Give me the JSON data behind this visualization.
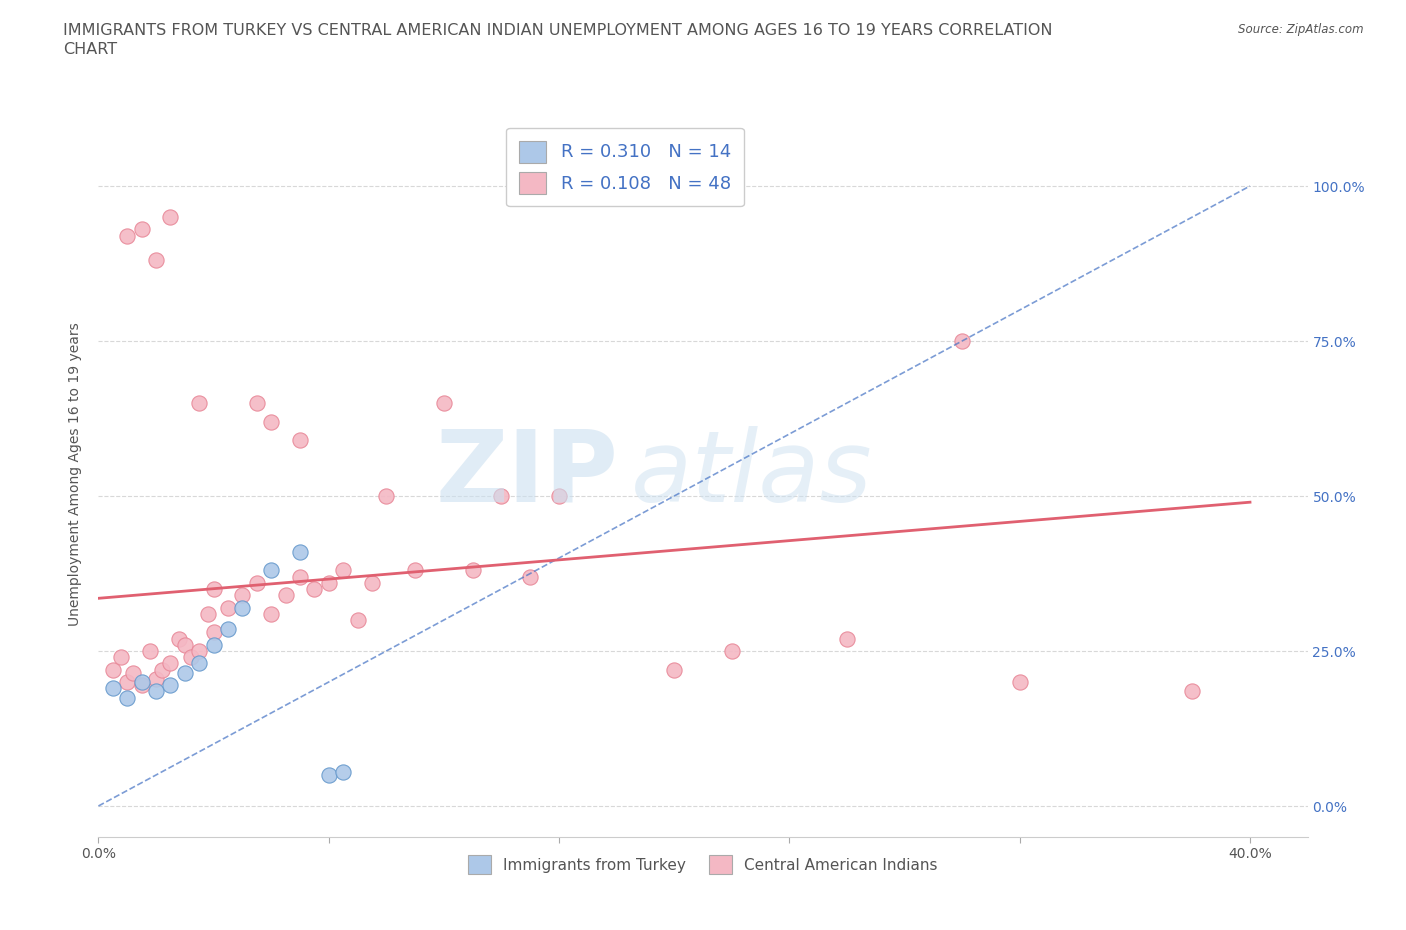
{
  "title_line1": "IMMIGRANTS FROM TURKEY VS CENTRAL AMERICAN INDIAN UNEMPLOYMENT AMONG AGES 16 TO 19 YEARS CORRELATION",
  "title_line2": "CHART",
  "source": "Source: ZipAtlas.com",
  "ylabel": "Unemployment Among Ages 16 to 19 years",
  "xlim": [
    0.0,
    0.42
  ],
  "ylim": [
    -0.05,
    1.12
  ],
  "xticks": [
    0.0,
    0.08,
    0.16,
    0.24,
    0.32,
    0.4
  ],
  "xticklabels": [
    "0.0%",
    "",
    "",
    "",
    "",
    "40.0%"
  ],
  "ytick_positions": [
    0.0,
    0.25,
    0.5,
    0.75,
    1.0
  ],
  "yticklabels_right": [
    "0.0%",
    "25.0%",
    "50.0%",
    "75.0%",
    "100.0%"
  ],
  "blue_R": 0.31,
  "blue_N": 14,
  "pink_R": 0.108,
  "pink_N": 48,
  "blue_color": "#adc8e8",
  "blue_edge": "#6699cc",
  "pink_color": "#f4b8c4",
  "pink_edge": "#e88898",
  "blue_line_color": "#4472c4",
  "pink_line_color": "#e06070",
  "background_color": "#ffffff",
  "grid_color": "#d8d8d8",
  "title_fontsize": 11.5,
  "axis_fontsize": 10,
  "tick_fontsize": 10,
  "marker_size": 120,
  "blue_x": [
    0.005,
    0.01,
    0.015,
    0.02,
    0.025,
    0.03,
    0.035,
    0.04,
    0.045,
    0.05,
    0.06,
    0.07,
    0.08,
    0.085
  ],
  "blue_y": [
    0.19,
    0.175,
    0.2,
    0.185,
    0.195,
    0.215,
    0.23,
    0.26,
    0.285,
    0.32,
    0.38,
    0.41,
    0.05,
    0.055
  ],
  "pink_x": [
    0.005,
    0.008,
    0.01,
    0.012,
    0.015,
    0.018,
    0.02,
    0.022,
    0.025,
    0.028,
    0.03,
    0.032,
    0.035,
    0.038,
    0.04,
    0.04,
    0.045,
    0.05,
    0.055,
    0.06,
    0.065,
    0.07,
    0.075,
    0.08,
    0.085,
    0.09,
    0.095,
    0.1,
    0.11,
    0.12,
    0.13,
    0.14,
    0.15,
    0.16,
    0.2,
    0.22,
    0.26,
    0.3,
    0.32,
    0.38,
    0.01,
    0.015,
    0.02,
    0.025,
    0.035,
    0.055,
    0.06,
    0.07
  ],
  "pink_y": [
    0.22,
    0.24,
    0.2,
    0.215,
    0.195,
    0.25,
    0.205,
    0.22,
    0.23,
    0.27,
    0.26,
    0.24,
    0.25,
    0.31,
    0.28,
    0.35,
    0.32,
    0.34,
    0.36,
    0.31,
    0.34,
    0.37,
    0.35,
    0.36,
    0.38,
    0.3,
    0.36,
    0.5,
    0.38,
    0.65,
    0.38,
    0.5,
    0.37,
    0.5,
    0.22,
    0.25,
    0.27,
    0.75,
    0.2,
    0.185,
    0.92,
    0.93,
    0.88,
    0.95,
    0.65,
    0.65,
    0.62,
    0.59
  ]
}
